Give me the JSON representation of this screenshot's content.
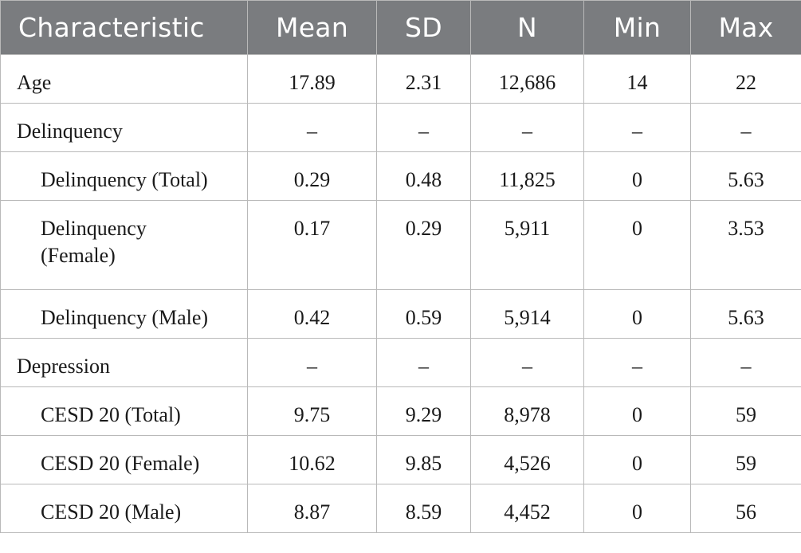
{
  "table": {
    "headers": [
      "Characteristic",
      "Mean",
      "SD",
      "N",
      "Min",
      "Max"
    ],
    "rows": [
      {
        "label": "Age",
        "indent": false,
        "mean": "17.89",
        "sd": "2.31",
        "n": "12,686",
        "min": "14",
        "max": "22"
      },
      {
        "label": "Delinquency",
        "indent": false,
        "mean": "–",
        "sd": "–",
        "n": "–",
        "min": "–",
        "max": "–"
      },
      {
        "label": "Delinquency (Total)",
        "indent": true,
        "mean": "0.29",
        "sd": "0.48",
        "n": "11,825",
        "min": "0",
        "max": "5.63"
      },
      {
        "label": "Delinquency (Female)",
        "indent": true,
        "mean": "0.17",
        "sd": "0.29",
        "n": "5,911",
        "min": "0",
        "max": "3.53"
      },
      {
        "label": "Delinquency (Male)",
        "indent": true,
        "mean": "0.42",
        "sd": "0.59",
        "n": "5,914",
        "min": "0",
        "max": "5.63"
      },
      {
        "label": "Depression",
        "indent": false,
        "mean": "–",
        "sd": "–",
        "n": "–",
        "min": "–",
        "max": "–"
      },
      {
        "label": "CESD 20 (Total)",
        "indent": true,
        "mean": "9.75",
        "sd": "9.29",
        "n": "8,978",
        "min": "0",
        "max": "59"
      },
      {
        "label": "CESD 20 (Female)",
        "indent": true,
        "mean": "10.62",
        "sd": "9.85",
        "n": "4,526",
        "min": "0",
        "max": "59"
      },
      {
        "label": "CESD 20 (Male)",
        "indent": true,
        "mean": "8.87",
        "sd": "8.59",
        "n": "4,452",
        "min": "0",
        "max": "56"
      }
    ]
  }
}
